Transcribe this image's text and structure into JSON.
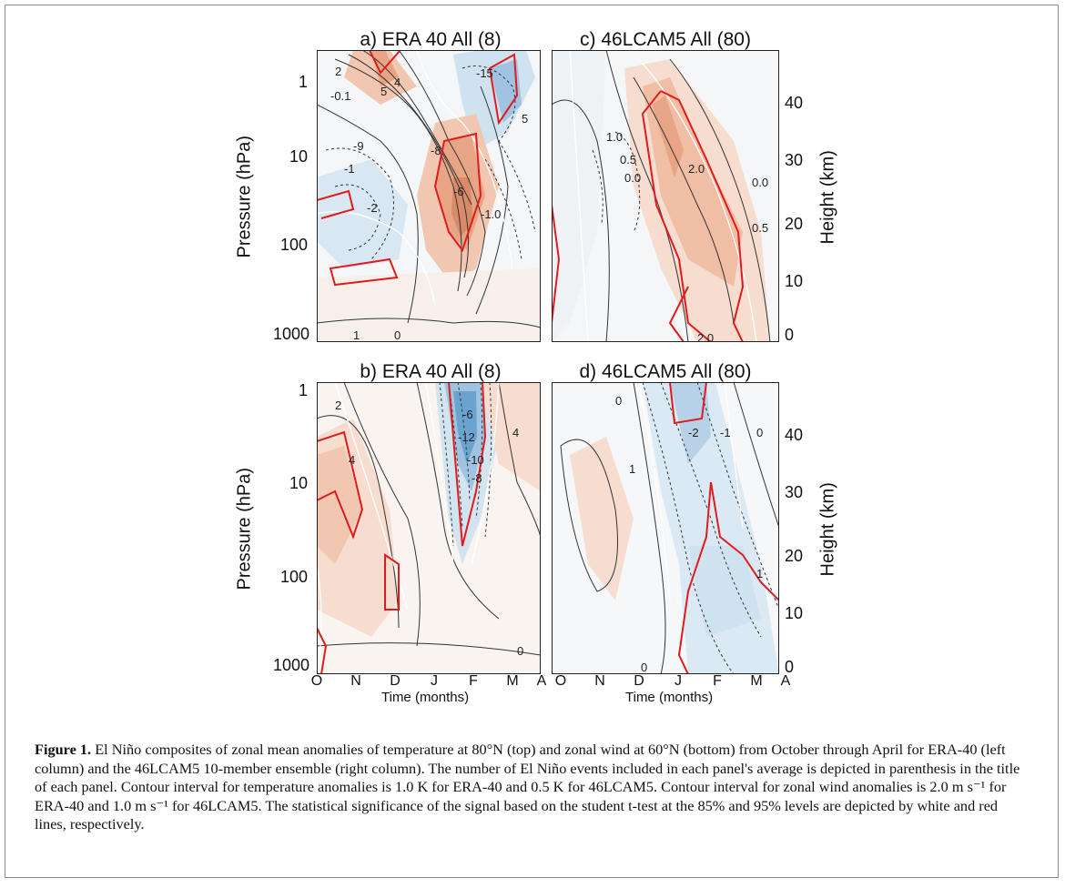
{
  "panels": {
    "a": {
      "title": "a) ERA 40 All (8)"
    },
    "b": {
      "title": "b) ERA 40 All (8)"
    },
    "c": {
      "title": "c) 46LCAM5 All (80)"
    },
    "d": {
      "title": "d) 46LCAM5 All (80)"
    }
  },
  "axes": {
    "pressure_label": "Pressure (hPa)",
    "height_label": "Height (km)",
    "time_label": "Time (months)",
    "pressure_ticks": [
      "1",
      "10",
      "100",
      "1000"
    ],
    "height_ticks": [
      "40",
      "30",
      "20",
      "10",
      "0"
    ],
    "month_ticks": [
      "O",
      "N",
      "D",
      "J",
      "F",
      "M",
      "A"
    ]
  },
  "contour_labels": {
    "a": [
      "2",
      "-0.1",
      "5",
      "4",
      "-9",
      "-1",
      "-2",
      "-8",
      "-6",
      "-1.0",
      "1",
      "0",
      "-15",
      "5"
    ],
    "b": [
      "2",
      "4",
      "-6",
      "-12",
      "-10",
      "-8",
      "4",
      "0"
    ],
    "c": [
      "1.0",
      "0.5",
      "0.0",
      "2.0",
      "0.0",
      "0.5",
      "2.0"
    ],
    "d": [
      "0",
      "-2",
      "-1",
      "0",
      "1",
      "1",
      "0"
    ]
  },
  "caption": {
    "label": "Figure 1.",
    "text": "El Niño composites of zonal mean anomalies of temperature at 80°N (top) and zonal wind at 60°N (bottom) from October through April for ERA-40 (left column) and the 46LCAM5 10-member ensemble (right column). The number of El Niño events included in each panel's average is depicted in parenthesis in the title of each panel. Contour interval for temperature anomalies is 1.0 K for ERA-40 and 0.5 K for 46LCAM5. Contour interval for zonal wind anomalies is 2.0 m s⁻¹ for ERA-40 and 1.0 m s⁻¹ for 46LCAM5. The statistical significance of the signal based on the student t-test at the 85% and 95% levels are depicted by white and red lines, respectively."
  },
  "colors": {
    "warm": "#e8a585",
    "warm_light": "#f6ddd0",
    "cool": "#6aa3cf",
    "cool_light": "#d3e4f1",
    "sig95": "#e01b1b",
    "sig85": "#ffffff",
    "contour": "#333333"
  }
}
